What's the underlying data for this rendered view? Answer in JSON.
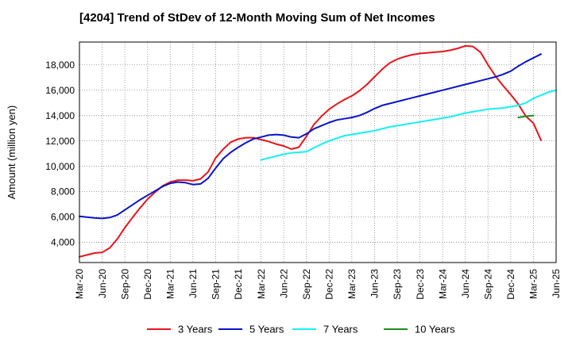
{
  "chart_data": {
    "type": "line",
    "title": "[4204]  Trend of StDev of 12-Month Moving Sum of Net Incomes",
    "xlabel": "",
    "ylabel": "Amount (million yen)",
    "ylim": [
      2400,
      19800
    ],
    "yticks": [
      4000,
      6000,
      8000,
      10000,
      12000,
      14000,
      16000,
      18000
    ],
    "ytick_labels": [
      "4,000",
      "6,000",
      "8,000",
      "10,000",
      "12,000",
      "14,000",
      "16,000",
      "18,000"
    ],
    "xticks": [
      "Mar-20",
      "Jun-20",
      "Sep-20",
      "Dec-20",
      "Mar-21",
      "Jun-21",
      "Sep-21",
      "Dec-21",
      "Mar-22",
      "Jun-22",
      "Sep-22",
      "Dec-22",
      "Mar-23",
      "Jun-23",
      "Sep-23",
      "Dec-23",
      "Mar-24",
      "Jun-24",
      "Sep-24",
      "Dec-24",
      "Mar-25",
      "Jun-25"
    ],
    "xlim": [
      "Mar-20",
      "Jun-25"
    ],
    "grid": true,
    "legend_position": "bottom",
    "series": [
      {
        "name": "3 Years",
        "color": "#e8141a",
        "start": "Mar-20",
        "values": [
          2850,
          3000,
          3150,
          3200,
          3550,
          4250,
          5150,
          5950,
          6700,
          7400,
          7950,
          8450,
          8750,
          8900,
          8900,
          8850,
          9000,
          9550,
          10650,
          11350,
          11900,
          12150,
          12250,
          12250,
          12100,
          11950,
          11750,
          11600,
          11350,
          11500,
          12350,
          13300,
          13950,
          14500,
          14900,
          15250,
          15550,
          15950,
          16450,
          17050,
          17650,
          18150,
          18450,
          18650,
          18800,
          18900,
          18950,
          19000,
          19050,
          19150,
          19300,
          19500,
          19450,
          19000,
          18000,
          17100,
          16350,
          15650,
          14900,
          13950,
          13400,
          12050
        ]
      },
      {
        "name": "5 Years",
        "color": "#0a14c8",
        "start": "Mar-20",
        "values": [
          6050,
          5980,
          5920,
          5880,
          5950,
          6150,
          6550,
          6950,
          7350,
          7700,
          8050,
          8400,
          8650,
          8750,
          8700,
          8550,
          8600,
          9050,
          9850,
          10600,
          11100,
          11500,
          11850,
          12150,
          12300,
          12450,
          12500,
          12450,
          12300,
          12250,
          12550,
          12950,
          13200,
          13450,
          13650,
          13750,
          13850,
          14000,
          14250,
          14550,
          14800,
          14950,
          15100,
          15250,
          15400,
          15550,
          15700,
          15850,
          16000,
          16150,
          16300,
          16450,
          16600,
          16750,
          16900,
          17050,
          17250,
          17500,
          17900,
          18250,
          18550,
          18850
        ]
      },
      {
        "name": "7 Years",
        "color": "#14f0f0",
        "start": "Mar-22",
        "values": [
          10500,
          10650,
          10800,
          10950,
          11050,
          11100,
          11150,
          11450,
          11750,
          12000,
          12200,
          12400,
          12500,
          12600,
          12700,
          12800,
          12950,
          13100,
          13200,
          13300,
          13400,
          13500,
          13600,
          13700,
          13800,
          13900,
          14050,
          14200,
          14300,
          14400,
          14500,
          14550,
          14600,
          14700,
          14800,
          15000,
          15350,
          15600,
          15850,
          16000
        ]
      },
      {
        "name": "10 Years",
        "color": "#208c20",
        "start": "Jan-25",
        "values": [
          13850,
          13950,
          14000
        ]
      }
    ]
  }
}
